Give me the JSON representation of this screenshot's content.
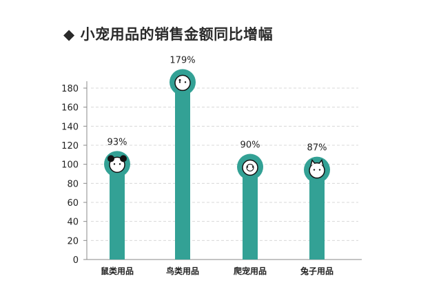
{
  "chart_data": {
    "type": "bar",
    "title": "小宠用品的销售金额同比增幅",
    "title_marker": "◆",
    "categories": [
      "鼠类用品",
      "鸟类用品",
      "爬宠用品",
      "兔子用品"
    ],
    "values": [
      93,
      179,
      90,
      87
    ],
    "data_labels": [
      "93%",
      "179%",
      "90%",
      "87%"
    ],
    "icons": [
      "mouse-icon",
      "bird-icon",
      "turtle-icon",
      "rabbit-icon"
    ],
    "ylim": [
      0,
      180
    ],
    "yticks": [
      0,
      20,
      40,
      60,
      80,
      100,
      120,
      140,
      160,
      180
    ],
    "grid": true,
    "xlabel": "",
    "ylabel": "",
    "colors": {
      "bar": "#33a195",
      "grid": "#d8d8d8",
      "axis": "#888888"
    }
  }
}
